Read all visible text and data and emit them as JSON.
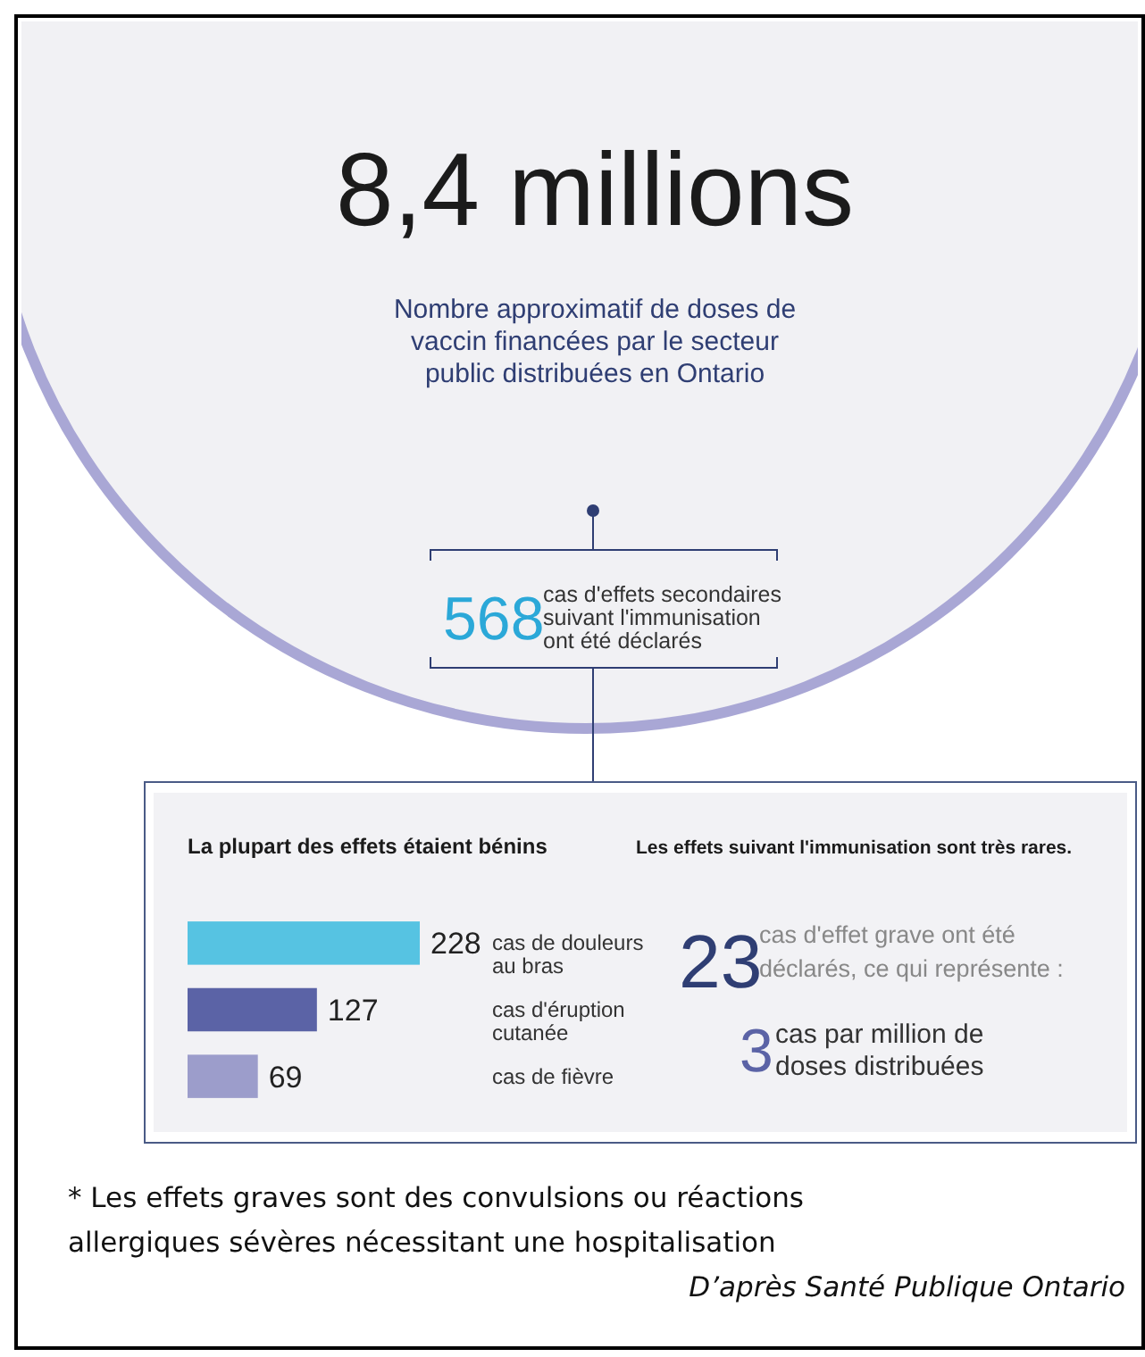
{
  "chart_data": {
    "type": "bar",
    "orientation": "horizontal",
    "title": "La plupart des effets étaient bénins",
    "categories": [
      "cas de douleurs au bras",
      "cas d'éruption cutanée",
      "cas de fièvre"
    ],
    "values": [
      228,
      127,
      69
    ],
    "colors": [
      "#56c3e2",
      "#5b63a6",
      "#9c9dcb"
    ],
    "data_labels": true,
    "annotations": [
      "8,4 millions",
      "Nombre approximatif de doses de vaccin financées par le secteur public distribuées en Ontario",
      "568",
      "cas d'effets secondaires suivant l'immunisation ont été déclarés",
      "Les effets suivant l'immunisation sont très rares.",
      "23",
      "cas d'effet grave ont été déclarés, ce qui représente :",
      "3",
      "cas par million de doses distribuées",
      "* Les effets graves sont des convulsions ou réactions allergiques sévères nécessitant une hospitalisation",
      "D’après Santé Publique Ontario"
    ]
  }
}
